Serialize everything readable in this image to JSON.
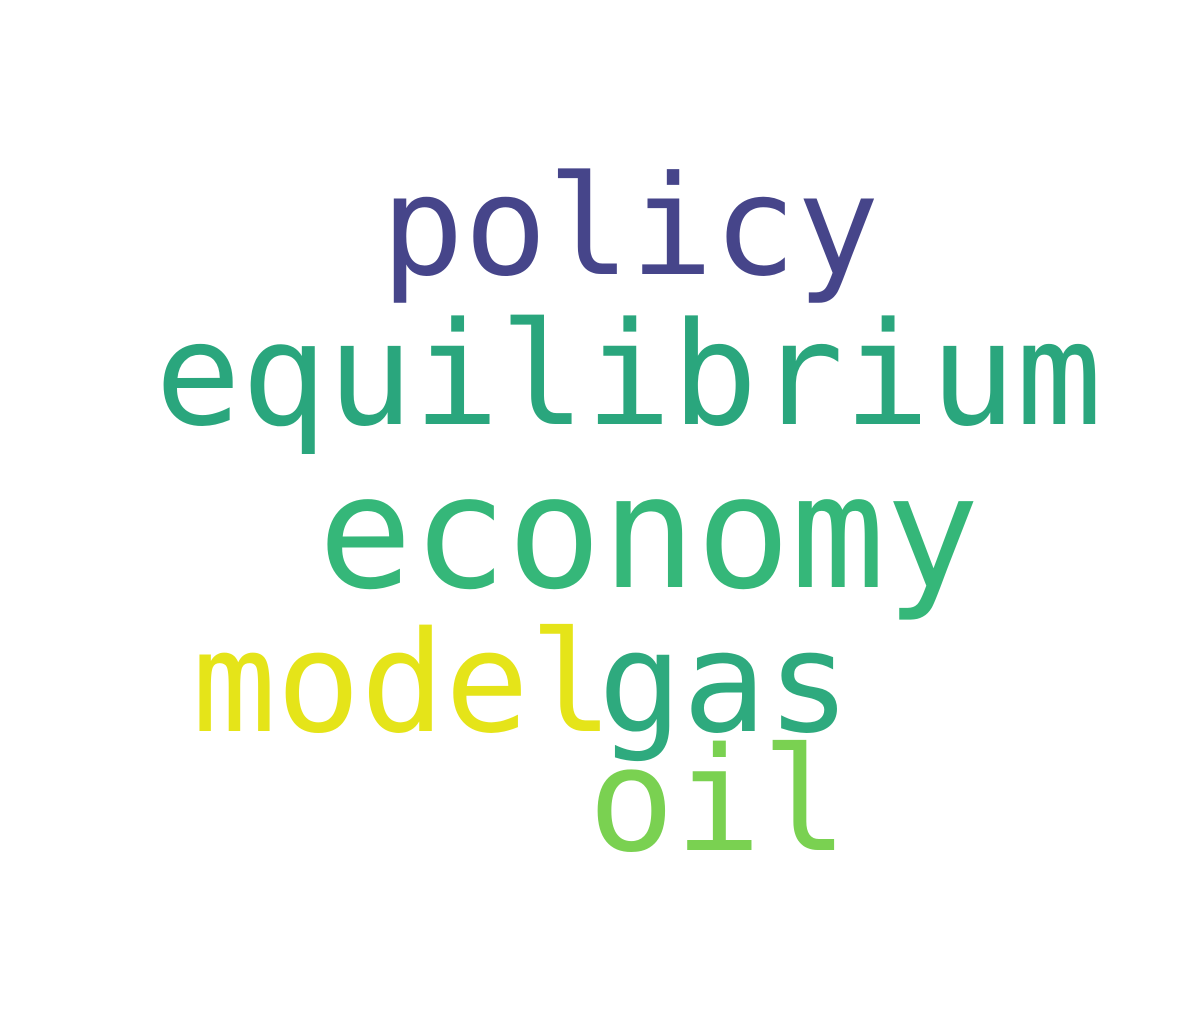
{
  "words": [
    {
      "text": "policy",
      "color": "#46458a"
    },
    {
      "text": "equilibrium",
      "color": "#2aa67d"
    },
    {
      "text": "economy",
      "color": "#35b779"
    },
    {
      "text": "model",
      "color": "#e5e419"
    },
    {
      "text": "gas",
      "color": "#2eaa7e"
    },
    {
      "text": "oil",
      "color": "#7ad151"
    }
  ]
}
